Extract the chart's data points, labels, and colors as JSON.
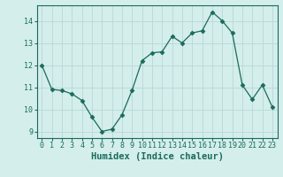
{
  "x": [
    0,
    1,
    2,
    3,
    4,
    5,
    6,
    7,
    8,
    9,
    10,
    11,
    12,
    13,
    14,
    15,
    16,
    17,
    18,
    19,
    20,
    21,
    22,
    23
  ],
  "y": [
    12.0,
    10.9,
    10.85,
    10.7,
    10.4,
    9.65,
    9.0,
    9.1,
    9.75,
    10.85,
    12.2,
    12.55,
    12.6,
    13.3,
    13.0,
    13.45,
    13.55,
    14.4,
    14.0,
    13.45,
    11.1,
    10.45,
    11.1,
    10.1
  ],
  "xlabel": "Humidex (Indice chaleur)",
  "xlim": [
    -0.5,
    23.5
  ],
  "ylim": [
    8.7,
    14.7
  ],
  "yticks": [
    9,
    10,
    11,
    12,
    13,
    14
  ],
  "xticks": [
    0,
    1,
    2,
    3,
    4,
    5,
    6,
    7,
    8,
    9,
    10,
    11,
    12,
    13,
    14,
    15,
    16,
    17,
    18,
    19,
    20,
    21,
    22,
    23
  ],
  "line_color": "#1a6b5a",
  "marker": "D",
  "marker_size": 2.5,
  "bg_color": "#d4eeec",
  "grid_color": "#b8d8d6",
  "label_color": "#1a6b5a",
  "tick_color": "#1a6b5a",
  "tick_fontsize": 6.0,
  "xlabel_fontsize": 7.5
}
